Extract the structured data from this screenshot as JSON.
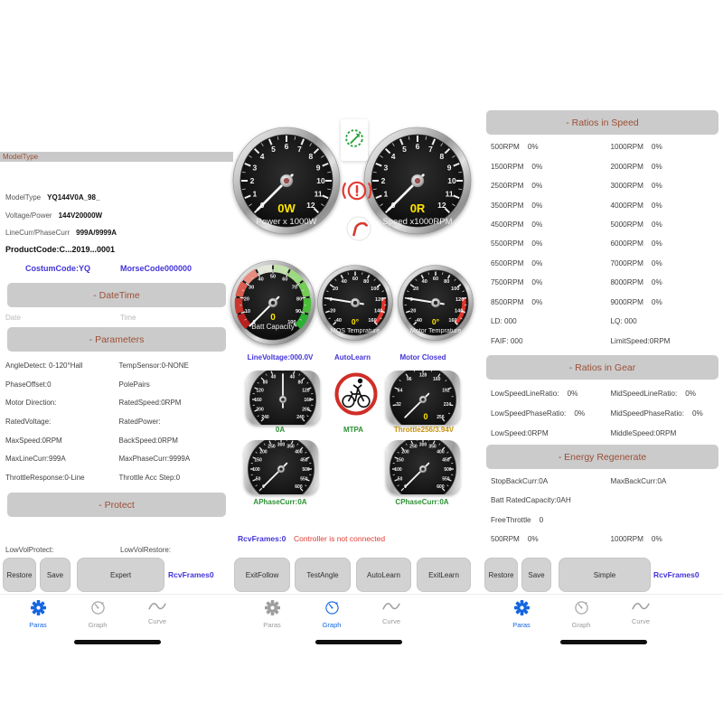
{
  "colors": {
    "accent_link": "#4334d8",
    "green": "#2f8f35",
    "orange": "#c8920a",
    "alert_red": "#e23b32",
    "tab_active_blue": "#1565e0",
    "gauge_value_yellow": "#ffe600",
    "section_text": "#9b4f35",
    "section_bar_bg": "#cbcbcb"
  },
  "tabs": {
    "paras": "Paras",
    "graph": "Graph",
    "curve": "Curve"
  },
  "left": {
    "section_modeltype": "ModelType",
    "info_rows": [
      {
        "label": "ModelType",
        "value": "YQ144V0A_98_"
      },
      {
        "label": "Voltage/Power",
        "value": "144V20000W"
      },
      {
        "label": "LineCurr/PhaseCurr",
        "value": "999A/9999A"
      }
    ],
    "product_code": "ProductCode:C...2019...0001",
    "costum_code": "CostumCode:YQ",
    "morse_code": "MorseCode000000",
    "section_datetime": "- DateTime",
    "date_label": "Date",
    "time_label": "Time",
    "section_parameters": "- Parameters",
    "param_rows": [
      [
        {
          "t": "AngleDetect: 0-120°Hall"
        },
        {
          "t": "TempSensor:0-NONE"
        }
      ],
      [
        {
          "t": "PhaseOffset:0"
        },
        {
          "t": "PolePairs"
        }
      ],
      [
        {
          "t": "Motor Direction:"
        },
        {
          "t": "RatedSpeed:0RPM"
        }
      ],
      [
        {
          "t": "RatedVoltage:"
        },
        {
          "t": "RatedPower:"
        }
      ],
      [
        {
          "t": "MaxSpeed:0RPM"
        },
        {
          "t": "BackSpeed:0RPM"
        }
      ],
      [
        {
          "t": "MaxLineCurr:999A"
        },
        {
          "t": "MaxPhaseCurr:9999A"
        }
      ],
      [
        {
          "t": "ThrottleResponse:0-Line"
        },
        {
          "t": "Throttle Acc Step:0"
        }
      ]
    ],
    "section_protect": "- Protect",
    "lowvol_protect": "LowVolProtect:",
    "lowvol_restore": "LowVolRestore:",
    "buttons": [
      "Restore",
      "Save",
      "Expert"
    ],
    "rcv_link": "RcvFrames0"
  },
  "middle": {
    "line_voltage": "LineVoltage:000.0V",
    "auto_learn": "AutoLearn",
    "motor_state": "Motor Closed",
    "line_curr": "0A",
    "mtpa": "MTPA",
    "throttle_label": "Throttle256/3.94V",
    "aphase": "APhaseCurr:0A",
    "cphase": "CPhaseCurr:0A",
    "rcv_frames": "RcvFrames:0",
    "conn_status": "Controller is not connected",
    "buttons": [
      "ExitFollow",
      "TestAngle",
      "AutoLearn",
      "ExitLearn"
    ]
  },
  "right": {
    "section_speed": "- Ratios in Speed",
    "speed_rows": [
      [
        {
          "t": "500RPM",
          "v": "0%"
        },
        {
          "t": "1000RPM",
          "v": "0%"
        }
      ],
      [
        {
          "t": "1500RPM",
          "v": "0%"
        },
        {
          "t": "2000RPM",
          "v": "0%"
        }
      ],
      [
        {
          "t": "2500RPM",
          "v": "0%"
        },
        {
          "t": "3000RPM",
          "v": "0%"
        }
      ],
      [
        {
          "t": "3500RPM",
          "v": "0%"
        },
        {
          "t": "4000RPM",
          "v": "0%"
        }
      ],
      [
        {
          "t": "4500RPM",
          "v": "0%"
        },
        {
          "t": "5000RPM",
          "v": "0%"
        }
      ],
      [
        {
          "t": "5500RPM",
          "v": "0%"
        },
        {
          "t": "6000RPM",
          "v": "0%"
        }
      ],
      [
        {
          "t": "6500RPM",
          "v": "0%"
        },
        {
          "t": "7000RPM",
          "v": "0%"
        }
      ],
      [
        {
          "t": "7500RPM",
          "v": "0%"
        },
        {
          "t": "8000RPM",
          "v": "0%"
        }
      ],
      [
        {
          "t": "8500RPM",
          "v": "0%"
        },
        {
          "t": "9000RPM",
          "v": "0%"
        }
      ],
      [
        {
          "t": "LD: 000"
        },
        {
          "t": "LQ: 000"
        }
      ],
      [
        {
          "t": "FAIF: 000"
        },
        {
          "t": "LimitSpeed:0RPM"
        }
      ]
    ],
    "section_gear": "- Ratios in Gear",
    "gear_rows": [
      [
        {
          "t": "LowSpeedLineRatio:",
          "v": "0%"
        },
        {
          "t": "MidSpeedLineRatio:",
          "v": "0%"
        }
      ],
      [
        {
          "t": "LowSpeedPhaseRatio:",
          "v": "0%"
        },
        {
          "t": "MidSpeedPhaseRatio:",
          "v": "0%"
        }
      ],
      [
        {
          "t": "LowSpeed:0RPM"
        },
        {
          "t": "MiddleSpeed:0RPM"
        }
      ]
    ],
    "section_energy": "- Energy Regenerate",
    "energy_rows": [
      [
        {
          "t": "StopBackCurr:0A"
        },
        {
          "t": "MaxBackCurr:0A"
        }
      ],
      [
        {
          "t": "Batt RatedCapacity:0AH"
        }
      ],
      [
        {
          "t": "FreeThrottle",
          "v": "0"
        }
      ],
      [
        {
          "t": "500RPM",
          "v": "0%"
        },
        {
          "t": "1000RPM",
          "v": "0%"
        }
      ]
    ],
    "buttons": [
      "Restore",
      "Save",
      "Simple"
    ],
    "rcv_link": "RcvFrames0"
  },
  "gauges": {
    "power": {
      "kind": "big",
      "min": 0,
      "max": 12,
      "start": -135,
      "end": 135,
      "minor": 2,
      "labels": [
        0,
        1,
        2,
        3,
        4,
        5,
        6,
        7,
        8,
        9,
        10,
        11,
        12
      ],
      "value": 0,
      "value_text": "0W",
      "value_color": "#ffe600",
      "name": "Power x 1000W"
    },
    "speed": {
      "kind": "big",
      "min": 0,
      "max": 12,
      "start": -135,
      "end": 135,
      "minor": 2,
      "labels": [
        0,
        1,
        2,
        3,
        4,
        5,
        6,
        7,
        8,
        9,
        10,
        11,
        12
      ],
      "value": 0,
      "value_text": "0R",
      "value_color": "#ffe600",
      "name": "Speed x1000RPM"
    },
    "batt": {
      "kind": "batt",
      "min": 0,
      "max": 100,
      "start": -135,
      "end": 135,
      "minor": 2,
      "labels": [
        0,
        10,
        20,
        30,
        40,
        50,
        60,
        70,
        80,
        90,
        100
      ],
      "value": 0,
      "value_text": "0",
      "value_color": "#ffe600",
      "name": "Batt Capacity",
      "segments": [
        "#b92020",
        "#c9352b",
        "#d95e50",
        "#e78d80",
        "#e3e8da",
        "#c2e2ad",
        "#9cd97f",
        "#74cb55",
        "#4cbd3a",
        "#2db034"
      ]
    },
    "mos": {
      "kind": "mid",
      "min": -40,
      "max": 160,
      "start": -135,
      "end": 135,
      "minor": 2,
      "labels": [
        -40,
        -20,
        0,
        20,
        40,
        60,
        80,
        100,
        120,
        140,
        160
      ],
      "redzone": [
        120,
        160
      ],
      "value": 0,
      "value_text": "0°",
      "value_color": "#ffe600",
      "name": "MOS Temprature"
    },
    "motor": {
      "kind": "mid",
      "min": -40,
      "max": 160,
      "start": -135,
      "end": 135,
      "minor": 2,
      "labels": [
        -40,
        -20,
        0,
        20,
        40,
        60,
        80,
        100,
        120,
        140,
        160
      ],
      "redzone": [
        120,
        160
      ],
      "value": 0,
      "value_text": "0°",
      "value_color": "#ffe600",
      "name": "Motor Temprature"
    },
    "linevolt": {
      "kind": "barrel",
      "min": -240,
      "max": 240,
      "start": -135,
      "end": 135,
      "minor": 2,
      "labels": [
        -240,
        -200,
        -160,
        -120,
        -80,
        -40,
        40,
        80,
        120,
        160,
        200,
        240
      ],
      "labels_abs": true,
      "value": 0
    },
    "throttle": {
      "kind": "barrel",
      "min": 0,
      "max": 256,
      "start": -135,
      "end": 135,
      "minor": 2,
      "labels": [
        32,
        64,
        96,
        128,
        160,
        192,
        224,
        256
      ],
      "value": 0,
      "value_text": "0",
      "value_color": "#ffe600"
    },
    "aphase": {
      "kind": "barrel",
      "min": 0,
      "max": 600,
      "start": -135,
      "end": 135,
      "minor": 2,
      "labels": [
        0,
        50,
        100,
        150,
        200,
        250,
        300,
        350,
        400,
        450,
        500,
        550,
        600
      ],
      "value": 0
    },
    "cphase": {
      "kind": "barrel",
      "min": 0,
      "max": 600,
      "start": -135,
      "end": 135,
      "minor": 2,
      "labels": [
        0,
        50,
        100,
        150,
        200,
        250,
        300,
        350,
        400,
        450,
        500,
        550,
        600
      ],
      "value": 0
    }
  }
}
